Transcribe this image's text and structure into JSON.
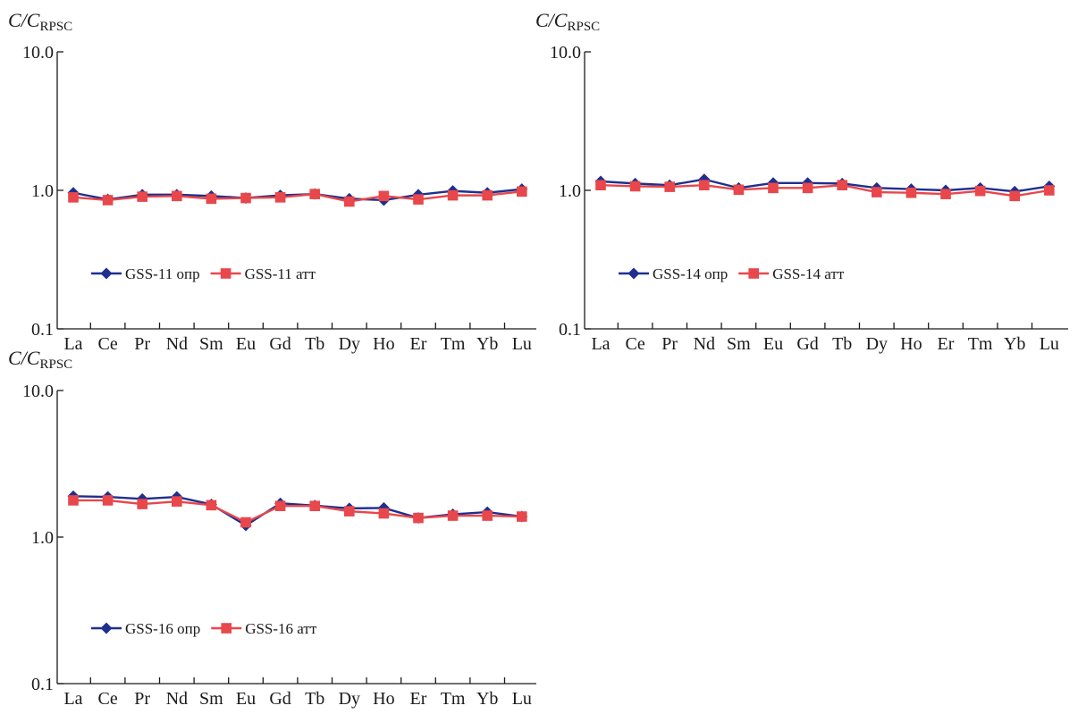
{
  "colors": {
    "opr": "#1f2f8f",
    "att": "#e8474b",
    "axis": "#1a1a1a"
  },
  "chart_data": [
    {
      "type": "line",
      "ylabel": "C/C",
      "ylabel_sub": "RPSC",
      "yscale": "log",
      "ylim": [
        0.1,
        10.0
      ],
      "yticks": [
        "10.0",
        "1.0",
        "0.1"
      ],
      "categories": [
        "La",
        "Ce",
        "Pr",
        "Nd",
        "Sm",
        "Eu",
        "Gd",
        "Tb",
        "Dy",
        "Ho",
        "Er",
        "Tm",
        "Yb",
        "Lu"
      ],
      "legend_position": "lower-left",
      "series": [
        {
          "name": "GSS-11 опр",
          "marker": "diamond",
          "values": [
            0.96,
            0.86,
            0.93,
            0.93,
            0.91,
            0.88,
            0.92,
            0.94,
            0.87,
            0.85,
            0.93,
            0.99,
            0.96,
            1.02
          ]
        },
        {
          "name": "GSS-11 атт",
          "marker": "square",
          "values": [
            0.89,
            0.85,
            0.9,
            0.91,
            0.87,
            0.88,
            0.89,
            0.94,
            0.83,
            0.91,
            0.86,
            0.92,
            0.92,
            0.98
          ]
        }
      ]
    },
    {
      "type": "line",
      "ylabel": "C/C",
      "ylabel_sub": "RPSC",
      "yscale": "log",
      "ylim": [
        0.1,
        10.0
      ],
      "yticks": [
        "10.0",
        "1.0",
        "0.1"
      ],
      "categories": [
        "La",
        "Ce",
        "Pr",
        "Nd",
        "Sm",
        "Eu",
        "Gd",
        "Tb",
        "Dy",
        "Ho",
        "Er",
        "Tm",
        "Yb",
        "Lu"
      ],
      "legend_position": "lower-left",
      "series": [
        {
          "name": "GSS-14 опр",
          "marker": "diamond",
          "values": [
            1.16,
            1.12,
            1.09,
            1.2,
            1.04,
            1.13,
            1.13,
            1.12,
            1.04,
            1.02,
            1.0,
            1.04,
            0.98,
            1.07
          ]
        },
        {
          "name": "GSS-14 атт",
          "marker": "square",
          "values": [
            1.09,
            1.07,
            1.06,
            1.09,
            1.01,
            1.04,
            1.04,
            1.09,
            0.97,
            0.96,
            0.94,
            0.99,
            0.91,
            1.0
          ]
        }
      ]
    },
    {
      "type": "line",
      "ylabel": "C/C",
      "ylabel_sub": "RPSC",
      "yscale": "log",
      "ylim": [
        0.1,
        10.0
      ],
      "yticks": [
        "10.0",
        "1.0",
        "0.1"
      ],
      "categories": [
        "La",
        "Ce",
        "Pr",
        "Nd",
        "Sm",
        "Eu",
        "Gd",
        "Tb",
        "Dy",
        "Ho",
        "Er",
        "Tm",
        "Yb",
        "Lu"
      ],
      "legend_position": "lower-left",
      "series": [
        {
          "name": "GSS-16 опр",
          "marker": "diamond",
          "values": [
            1.9,
            1.88,
            1.82,
            1.88,
            1.67,
            1.2,
            1.7,
            1.64,
            1.57,
            1.58,
            1.35,
            1.43,
            1.48,
            1.38
          ]
        },
        {
          "name": "GSS-16 атт",
          "marker": "square",
          "values": [
            1.78,
            1.78,
            1.68,
            1.75,
            1.65,
            1.26,
            1.63,
            1.63,
            1.5,
            1.45,
            1.35,
            1.4,
            1.4,
            1.38
          ]
        }
      ]
    }
  ]
}
